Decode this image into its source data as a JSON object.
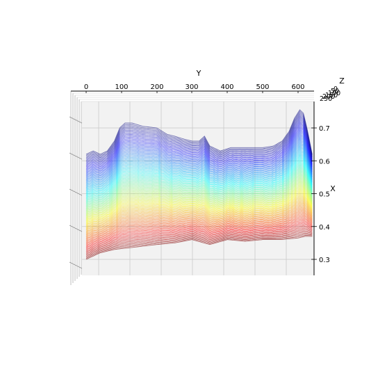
{
  "chart_data": {
    "type": "surface",
    "title": "",
    "xlabel": "X",
    "ylabel": "Y",
    "zlabel": "Z",
    "colormap": "jet",
    "view": "top-down projection",
    "y_ticks": [
      "0",
      "100",
      "200",
      "300",
      "400",
      "500",
      "600"
    ],
    "z_ticks_right": [
      "0.3",
      "0.4",
      "0.5",
      "0.6",
      "0.7"
    ],
    "x_ticks_overlap": [
      "0",
      "50",
      "100",
      "150",
      "200",
      "250"
    ],
    "ylim": [
      0,
      640
    ],
    "zlim": [
      0.27,
      0.77
    ],
    "grid": true,
    "pane_color": "#f2f2f2",
    "grid_color": "#c8c8c8",
    "top_edge_profile": {
      "y": [
        0,
        20,
        40,
        60,
        80,
        95,
        110,
        130,
        160,
        200,
        230,
        250,
        280,
        300,
        320,
        335,
        350,
        380,
        410,
        440,
        470,
        500,
        530,
        555,
        575,
        590,
        605,
        615,
        625,
        640
      ],
      "z": [
        0.62,
        0.63,
        0.62,
        0.63,
        0.66,
        0.7,
        0.715,
        0.715,
        0.705,
        0.7,
        0.68,
        0.675,
        0.665,
        0.66,
        0.66,
        0.675,
        0.645,
        0.63,
        0.64,
        0.64,
        0.64,
        0.64,
        0.645,
        0.66,
        0.69,
        0.73,
        0.755,
        0.745,
        0.7,
        0.62
      ]
    },
    "bottom_edge_profile": {
      "y": [
        0,
        20,
        40,
        80,
        120,
        160,
        200,
        250,
        300,
        350,
        400,
        450,
        500,
        550,
        600,
        620,
        640
      ],
      "z": [
        0.3,
        0.31,
        0.32,
        0.33,
        0.335,
        0.34,
        0.345,
        0.35,
        0.36,
        0.345,
        0.36,
        0.355,
        0.36,
        0.36,
        0.365,
        0.37,
        0.37
      ]
    }
  }
}
